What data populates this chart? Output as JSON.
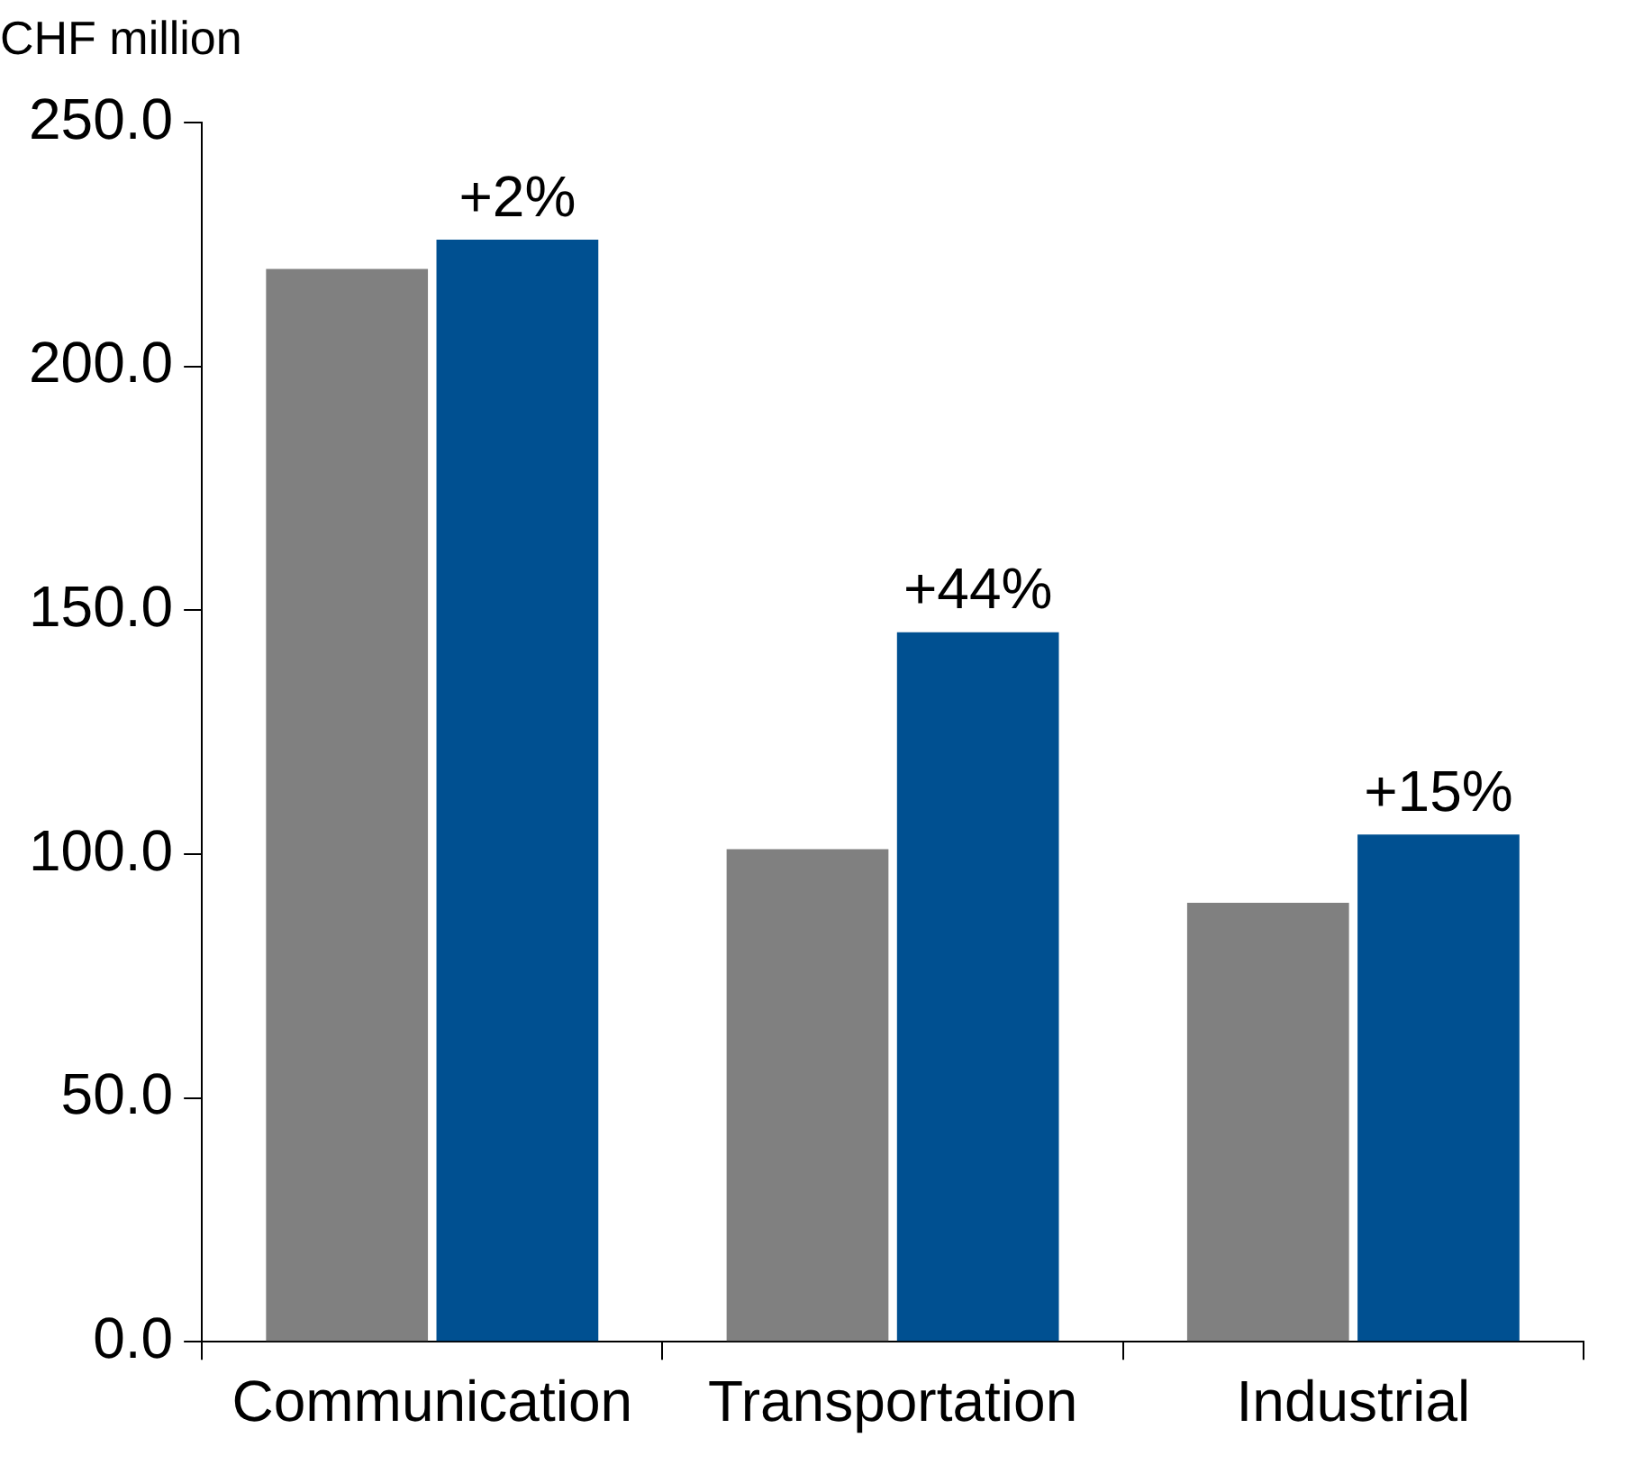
{
  "chart_data": {
    "type": "bar",
    "ylabel": "CHF million",
    "categories": [
      "Communication",
      "Transportation",
      "Industrial"
    ],
    "series": [
      {
        "color": "#808080",
        "values": [
          220,
          101,
          90
        ]
      },
      {
        "color": "#005091",
        "values": [
          226,
          145.5,
          104
        ]
      }
    ],
    "annotations": [
      {
        "text": "+2%",
        "x": "Communication",
        "y": 226
      },
      {
        "text": "+44%",
        "x": "Transportation",
        "y": 145.5
      },
      {
        "text": "+15%",
        "x": "Industrial",
        "y": 104
      }
    ],
    "ylim": [
      0,
      250
    ],
    "yticks": [
      {
        "value": 0,
        "label": "0.0"
      },
      {
        "value": 50,
        "label": "50.0"
      },
      {
        "value": 100,
        "label": "100.0"
      },
      {
        "value": 150,
        "label": "150.0"
      },
      {
        "value": 200,
        "label": "200.0"
      },
      {
        "value": 250,
        "label": "250.0"
      }
    ],
    "grid": false,
    "legend": false
  }
}
